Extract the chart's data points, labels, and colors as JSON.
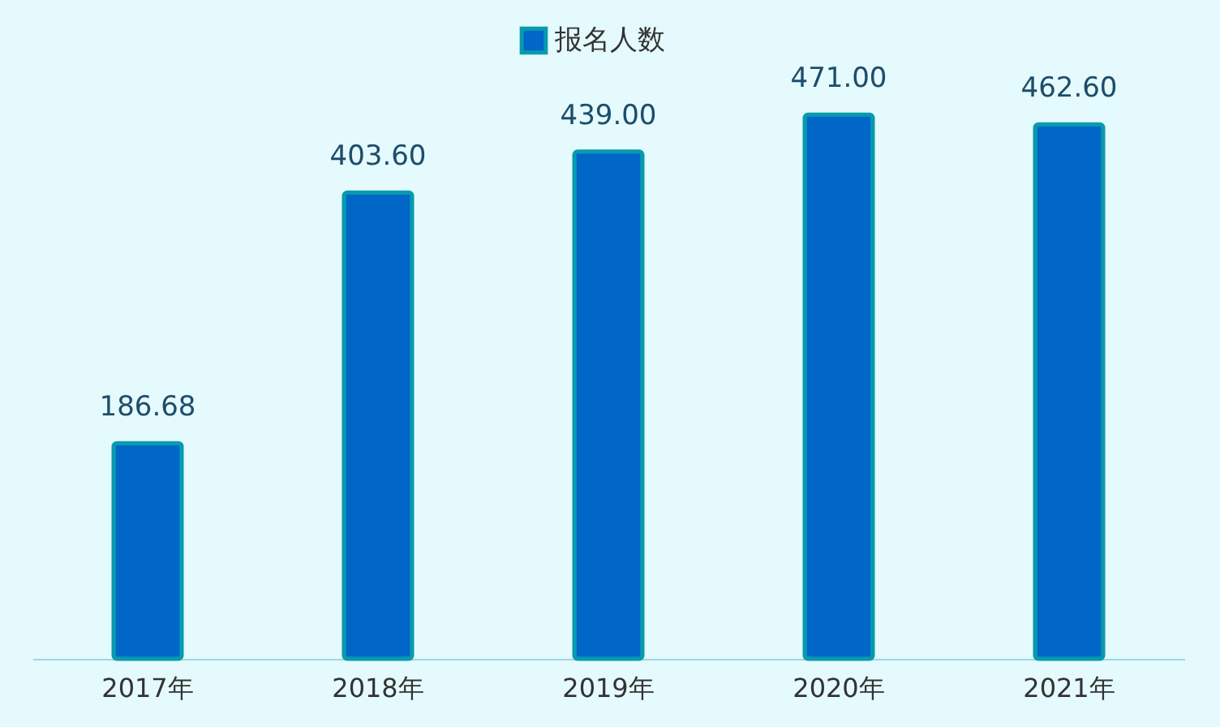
{
  "chart_data": {
    "type": "bar",
    "categories": [
      "2017年",
      "2018年",
      "2019年",
      "2020年",
      "2021年"
    ],
    "series": [
      {
        "name": "报名人数",
        "color": "#0066c8",
        "values": [
          186.68,
          403.6,
          439.0,
          471.0,
          462.6
        ],
        "value_labels": [
          "186.68",
          "403.60",
          "439.00",
          "471.00",
          "462.60"
        ]
      }
    ],
    "legend": "top",
    "grid": false
  }
}
